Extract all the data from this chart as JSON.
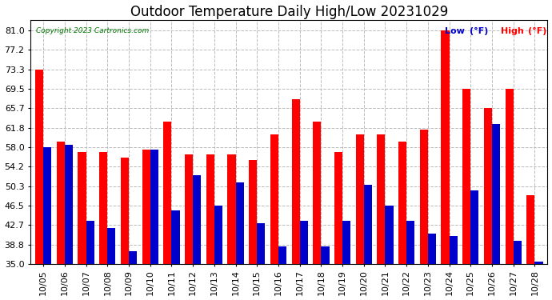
{
  "title": "Outdoor Temperature Daily High/Low 20231029",
  "copyright": "Copyright 2023 Cartronics.com",
  "legend_low": "Low",
  "legend_high": "High",
  "legend_unit": "(°F)",
  "dates": [
    "10/05",
    "10/06",
    "10/07",
    "10/08",
    "10/09",
    "10/10",
    "10/11",
    "10/12",
    "10/13",
    "10/14",
    "10/15",
    "10/16",
    "10/17",
    "10/18",
    "10/19",
    "10/20",
    "10/21",
    "10/22",
    "10/23",
    "10/24",
    "10/25",
    "10/26",
    "10/27",
    "10/28"
  ],
  "highs": [
    73.3,
    59.0,
    57.0,
    57.0,
    56.0,
    57.5,
    63.0,
    56.5,
    56.5,
    56.5,
    55.5,
    60.5,
    67.5,
    63.0,
    57.0,
    60.5,
    60.5,
    59.0,
    61.5,
    81.0,
    69.5,
    65.7,
    69.5,
    48.5
  ],
  "lows": [
    58.0,
    58.5,
    43.5,
    42.0,
    37.5,
    57.5,
    45.5,
    52.5,
    46.5,
    51.0,
    43.0,
    38.5,
    43.5,
    38.5,
    43.5,
    50.5,
    46.5,
    43.5,
    41.0,
    40.5,
    49.5,
    62.5,
    39.5,
    35.5
  ],
  "ylim_min": 35.0,
  "ylim_max": 83.0,
  "yticks": [
    35.0,
    38.8,
    42.7,
    46.5,
    50.3,
    54.2,
    58.0,
    61.8,
    65.7,
    69.5,
    73.3,
    77.2,
    81.0
  ],
  "bar_color_high": "#ff0000",
  "bar_color_low": "#0000cc",
  "background_color": "#ffffff",
  "grid_color": "#bbbbbb",
  "title_fontsize": 12,
  "tick_fontsize": 8,
  "bar_width": 0.38,
  "copyright_color": "#007700",
  "low_text_color": "#0000cc",
  "high_text_color": "#ff0000"
}
